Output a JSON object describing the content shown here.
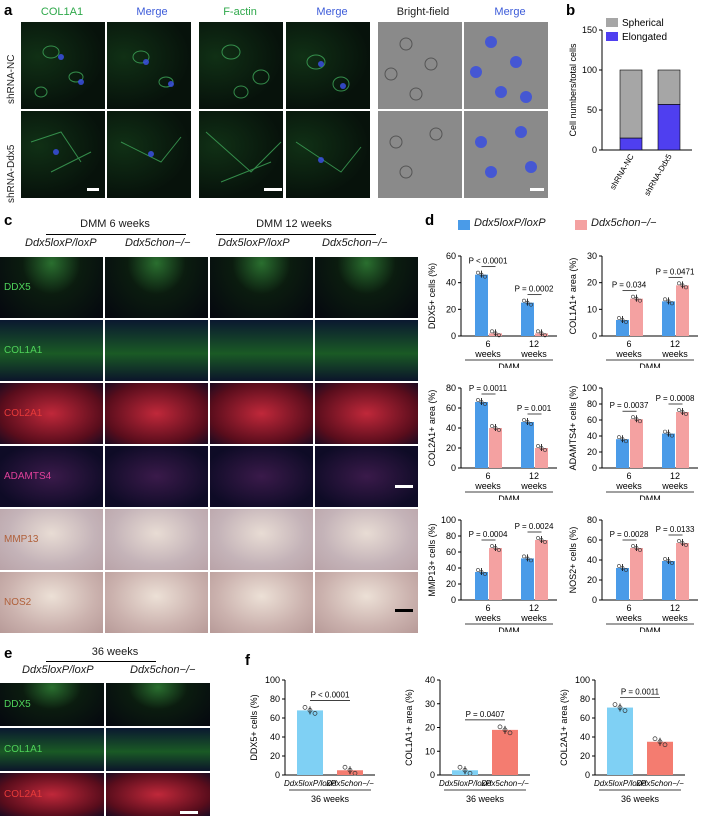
{
  "panel_a": {
    "letter": "a",
    "col_headers": [
      "COL1A1",
      "Merge",
      "F-actin",
      "Merge",
      "Bright-field",
      "Merge"
    ],
    "row_labels": [
      "shRNA-NC",
      "shRNA-Ddx5"
    ]
  },
  "panel_b": {
    "letter": "b",
    "legend": [
      "Spherical",
      "Elongated"
    ],
    "colors": {
      "spherical": "#a6a6a6",
      "elongated": "#4f3ff0"
    }
  },
  "panel_c": {
    "letter": "c",
    "group_headers": [
      "DMM 6 weeks",
      "DMM 12 weeks"
    ],
    "genotypes": [
      "Ddx5loxP/loxP",
      "Ddx5chon−/−",
      "Ddx5loxP/loxP",
      "Ddx5chon−/−"
    ],
    "rows": [
      "DDX5",
      "COL1A1",
      "COL2A1",
      "ADAMTS4",
      "MMP13",
      "NOS2"
    ]
  },
  "panel_d": {
    "letter": "d",
    "legend": [
      "Ddx5loxP/loxP",
      "Ddx5chon−/−"
    ],
    "colors": {
      "ctrl": "#4a9be8",
      "ko": "#f4a1a1"
    }
  },
  "panel_e": {
    "letter": "e",
    "header": "36 weeks",
    "genotypes": [
      "Ddx5loxP/loxP",
      "Ddx5chon−/−"
    ],
    "rows": [
      "DDX5",
      "COL1A1",
      "COL2A1"
    ]
  },
  "panel_f": {
    "letter": "f"
  },
  "chart_data": [
    {
      "type": "bar",
      "panel": "b",
      "categories": [
        "shRNA-NC",
        "shRNA-Ddx5"
      ],
      "ylabel": "Cell numbers/total cells",
      "ylim": [
        0,
        150
      ],
      "yticks": [
        0,
        50,
        100,
        150
      ],
      "stacked": true,
      "series": [
        {
          "name": "Elongated",
          "values": [
            15,
            57
          ]
        },
        {
          "name": "Spherical",
          "values": [
            85,
            43
          ]
        }
      ]
    },
    {
      "type": "bar",
      "panel": "d1",
      "categories": [
        "6 weeks",
        "12 weeks"
      ],
      "xlabel": "DMM",
      "ylabel": "DDX5+ cells (%)",
      "ylim": [
        0,
        60
      ],
      "yticks": [
        0,
        20,
        40,
        60
      ],
      "series": [
        {
          "values": [
            46,
            25
          ]
        },
        {
          "values": [
            2,
            2
          ]
        }
      ],
      "pvalues": [
        "P < 0.0001",
        "P = 0.0002"
      ]
    },
    {
      "type": "bar",
      "panel": "d2",
      "categories": [
        "6 weeks",
        "12 weeks"
      ],
      "xlabel": "DMM",
      "ylabel": "COL1A1+ area (%)",
      "ylim": [
        0,
        30
      ],
      "yticks": [
        0,
        10,
        20,
        30
      ],
      "series": [
        {
          "values": [
            6,
            13
          ]
        },
        {
          "values": [
            14,
            19
          ]
        }
      ],
      "pvalues": [
        "P = 0.034",
        "P = 0.0471"
      ]
    },
    {
      "type": "bar",
      "panel": "d3",
      "categories": [
        "6 weeks",
        "12 weeks"
      ],
      "xlabel": "DMM",
      "ylabel": "COL2A1+ area (%)",
      "ylim": [
        0,
        80
      ],
      "yticks": [
        0,
        20,
        40,
        60,
        80
      ],
      "series": [
        {
          "values": [
            66,
            46
          ]
        },
        {
          "values": [
            40,
            20
          ]
        }
      ],
      "pvalues": [
        "P = 0.0011",
        "P = 0.001"
      ]
    },
    {
      "type": "bar",
      "panel": "d4",
      "categories": [
        "6 weeks",
        "12 weeks"
      ],
      "xlabel": "DMM",
      "ylabel": "ADAMTS4+ cells (%)",
      "ylim": [
        0,
        100
      ],
      "yticks": [
        0,
        20,
        40,
        60,
        80,
        100
      ],
      "series": [
        {
          "values": [
            36,
            43
          ]
        },
        {
          "values": [
            61,
            70
          ]
        }
      ],
      "pvalues": [
        "P = 0.0037",
        "P = 0.0008"
      ]
    },
    {
      "type": "bar",
      "panel": "d5",
      "categories": [
        "6 weeks",
        "12 weeks"
      ],
      "xlabel": "DMM",
      "ylabel": "MMP13+ cells (%)",
      "ylim": [
        0,
        100
      ],
      "yticks": [
        0,
        20,
        40,
        60,
        80,
        100
      ],
      "series": [
        {
          "values": [
            35,
            52
          ]
        },
        {
          "values": [
            65,
            75
          ]
        }
      ],
      "pvalues": [
        "P = 0.0004",
        "P = 0.0024"
      ]
    },
    {
      "type": "bar",
      "panel": "d6",
      "categories": [
        "6 weeks",
        "12 weeks"
      ],
      "xlabel": "DMM",
      "ylabel": "NOS2+ cells (%)",
      "ylim": [
        0,
        80
      ],
      "yticks": [
        0,
        20,
        40,
        60,
        80
      ],
      "series": [
        {
          "values": [
            32,
            39
          ]
        },
        {
          "values": [
            52,
            57
          ]
        }
      ],
      "pvalues": [
        "P = 0.0028",
        "P = 0.0133"
      ]
    },
    {
      "type": "bar",
      "panel": "f1",
      "categories": [
        "Ddx5loxP/loxP",
        "Ddx5chon−/−"
      ],
      "xlabel": "36 weeks",
      "ylabel": "DDX5+ cells (%)",
      "ylim": [
        0,
        100
      ],
      "yticks": [
        0,
        20,
        40,
        60,
        80,
        100
      ],
      "values": [
        68,
        5
      ],
      "pvalue": "P < 0.0001"
    },
    {
      "type": "bar",
      "panel": "f2",
      "categories": [
        "Ddx5loxP/loxP",
        "Ddx5chon−/−"
      ],
      "xlabel": "36 weeks",
      "ylabel": "COL1A1+ area (%)",
      "ylim": [
        0,
        40
      ],
      "yticks": [
        0,
        10,
        20,
        30,
        40
      ],
      "values": [
        2,
        19
      ],
      "pvalue": "P = 0.0407"
    },
    {
      "type": "bar",
      "panel": "f3",
      "categories": [
        "Ddx5loxP/loxP",
        "Ddx5chon−/−"
      ],
      "xlabel": "36 weeks",
      "ylabel": "COL2A1+ area (%)",
      "ylim": [
        0,
        100
      ],
      "yticks": [
        0,
        20,
        40,
        60,
        80,
        100
      ],
      "values": [
        71,
        35
      ],
      "pvalue": "P = 0.0011"
    }
  ]
}
